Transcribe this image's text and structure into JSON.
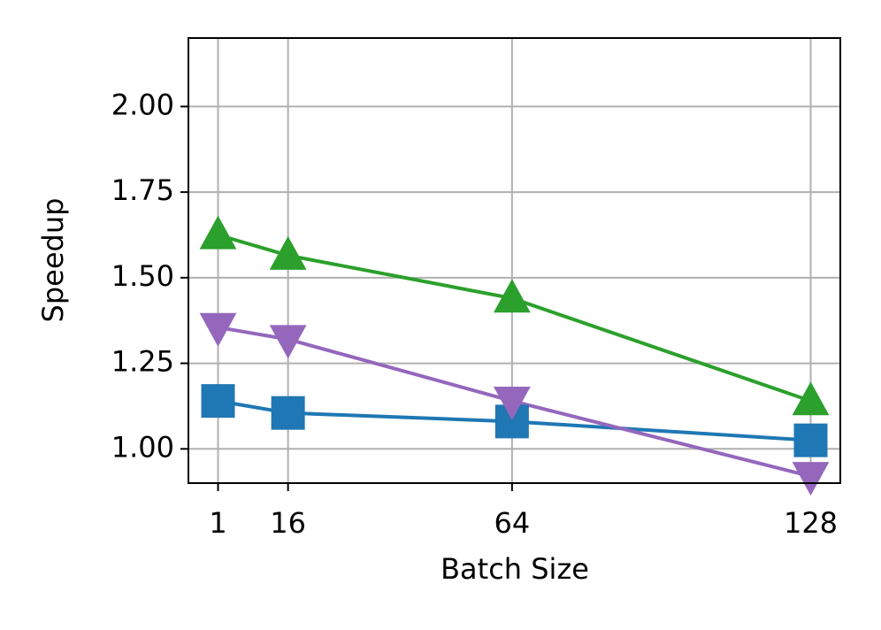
{
  "chart_data": {
    "type": "line",
    "x_label": "Batch Size",
    "y_label": "Speedup",
    "x": [
      1,
      16,
      64,
      128
    ],
    "series": [
      {
        "color": "#1f77b4",
        "marker": "square",
        "values": [
          1.14,
          1.105,
          1.08,
          1.025
        ]
      },
      {
        "color": "#2ca02c",
        "marker": "triangle-up",
        "values": [
          1.625,
          1.565,
          1.44,
          1.14
        ]
      },
      {
        "color": "#9467bd",
        "marker": "triangle-down",
        "values": [
          1.355,
          1.32,
          1.14,
          0.92
        ]
      }
    ],
    "xlim": [
      -5.35,
      134.35
    ],
    "xticks": [
      1,
      16,
      64,
      128
    ],
    "ylim": [
      0.9,
      2.2
    ],
    "yticks": [
      {
        "value": 1,
        "label": "1.00"
      },
      {
        "value": 1.25,
        "label": "1.25"
      },
      {
        "value": 1.5,
        "label": "1.50"
      },
      {
        "value": 1.75,
        "label": "1.75"
      },
      {
        "value": 2,
        "label": "2.00"
      }
    ],
    "grid": true
  }
}
